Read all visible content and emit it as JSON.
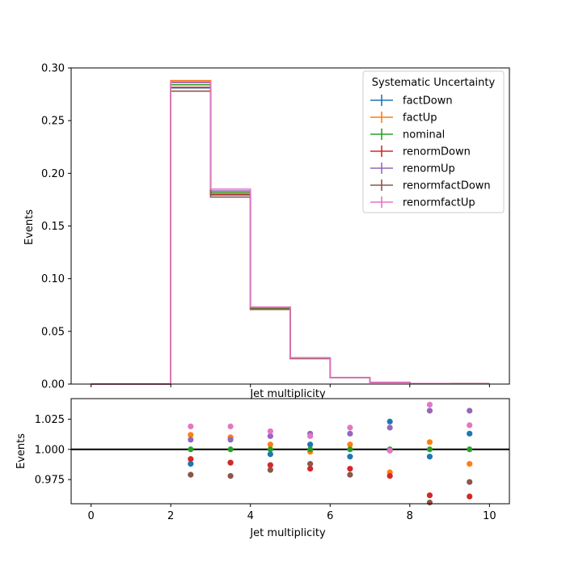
{
  "chart_data": [
    {
      "type": "line",
      "style": "step-histogram",
      "xlabel": "Jet multiplicity",
      "ylabel": "Events",
      "xlim": [
        -0.5,
        10.5
      ],
      "ylim": [
        0,
        0.3
      ],
      "bin_edges": [
        0,
        1,
        2,
        3,
        4,
        5,
        6,
        7,
        8,
        9,
        10
      ],
      "xticks": [
        "0",
        "2",
        "4",
        "6",
        "8",
        "10"
      ],
      "xtick_values": [
        0,
        2,
        4,
        6,
        8,
        10
      ],
      "yticks": [
        "0.00",
        "0.05",
        "0.10",
        "0.15",
        "0.20",
        "0.25",
        "0.30"
      ],
      "ytick_values": [
        0,
        0.05,
        0.1,
        0.15,
        0.2,
        0.25,
        0.3
      ],
      "legend": {
        "title": "Systematic Uncertainty",
        "placement": "top-right"
      },
      "series": [
        {
          "name": "factDown",
          "color": "#1f77b4",
          "values": [
            0,
            0,
            0.281,
            0.18,
            0.0714,
            0.0248,
            0.006,
            0.0015,
            0.0005,
            0.0003
          ]
        },
        {
          "name": "factUp",
          "color": "#ff7f0e",
          "values": [
            0,
            0,
            0.288,
            0.183,
            0.0724,
            0.0247,
            0.0062,
            0.0015,
            0.0005,
            0.0003
          ]
        },
        {
          "name": "nominal",
          "color": "#2ca02c",
          "values": [
            0,
            0,
            0.284,
            0.1815,
            0.072,
            0.0246,
            0.0061,
            0.0015,
            0.0005,
            0.0003
          ]
        },
        {
          "name": "renormDown",
          "color": "#d62728",
          "values": [
            0,
            0,
            0.2815,
            0.1795,
            0.071,
            0.0242,
            0.006,
            0.0015,
            0.0005,
            0.0003
          ]
        },
        {
          "name": "renormUp",
          "color": "#9467bd",
          "values": [
            0,
            0,
            0.286,
            0.1832,
            0.0728,
            0.0249,
            0.0062,
            0.0015,
            0.0005,
            0.0003
          ]
        },
        {
          "name": "renormfactDown",
          "color": "#8c564b",
          "values": [
            0,
            0,
            0.278,
            0.1775,
            0.0708,
            0.0243,
            0.006,
            0.0015,
            0.0005,
            0.0003
          ]
        },
        {
          "name": "renormfactUp",
          "color": "#e377c2",
          "values": [
            0,
            0,
            0.287,
            0.185,
            0.0731,
            0.0249,
            0.0062,
            0.0015,
            0.0005,
            0.0003
          ]
        }
      ]
    },
    {
      "type": "scatter",
      "xlabel": "Jet multiplicity",
      "ylabel": "Events",
      "xlim": [
        -0.5,
        10.5
      ],
      "ylim": [
        0.955,
        1.042
      ],
      "reference_line": 1.0,
      "x": [
        2.5,
        3.5,
        4.5,
        5.5,
        6.5,
        7.5,
        8.5,
        9.5
      ],
      "xticks": [
        "0",
        "2",
        "4",
        "6",
        "8",
        "10"
      ],
      "xtick_values": [
        0,
        2,
        4,
        6,
        8,
        10
      ],
      "yticks": [
        "0.975",
        "1.000",
        "1.025"
      ],
      "ytick_values": [
        0.975,
        1.0,
        1.025
      ],
      "series": [
        {
          "name": "factDown",
          "color": "#1f77b4",
          "values": [
            0.988,
            0.989,
            0.996,
            1.004,
            0.994,
            1.023,
            0.994,
            1.013
          ]
        },
        {
          "name": "factUp",
          "color": "#ff7f0e",
          "values": [
            1.012,
            1.01,
            1.004,
            0.998,
            1.004,
            0.981,
            1.006,
            0.988
          ]
        },
        {
          "name": "nominal",
          "color": "#2ca02c",
          "values": [
            1.0,
            1.0,
            1.0,
            1.0,
            1.0,
            1.0,
            1.0,
            1.0
          ]
        },
        {
          "name": "renormDown",
          "color": "#d62728",
          "values": [
            0.992,
            0.989,
            0.987,
            0.984,
            0.984,
            0.978,
            0.962,
            0.961
          ]
        },
        {
          "name": "renormUp",
          "color": "#9467bd",
          "values": [
            1.008,
            1.008,
            1.011,
            1.013,
            1.013,
            1.018,
            1.032,
            1.032
          ]
        },
        {
          "name": "renormfactDown",
          "color": "#8c564b",
          "values": [
            0.979,
            0.978,
            0.983,
            0.988,
            0.979,
            0.999,
            0.956,
            0.973
          ]
        },
        {
          "name": "renormfactUp",
          "color": "#e377c2",
          "values": [
            1.019,
            1.019,
            1.015,
            1.011,
            1.018,
            0.999,
            1.037,
            1.02
          ]
        }
      ]
    }
  ]
}
